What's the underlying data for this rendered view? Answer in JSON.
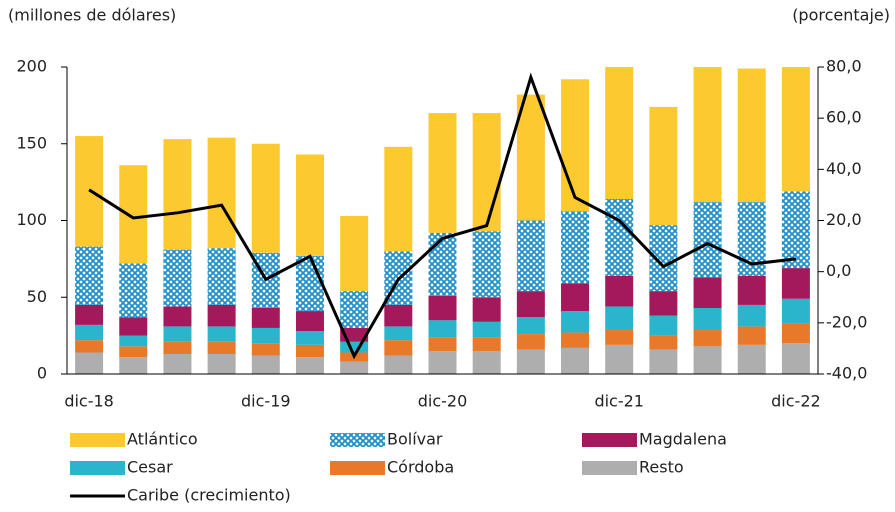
{
  "chart_data": {
    "type": "bar",
    "stacked": true,
    "y_label": "(millones de dólares)",
    "y2_label": "(porcentaje)",
    "categories": [
      "dic-18",
      null,
      null,
      null,
      "dic-19",
      null,
      null,
      null,
      "dic-20",
      null,
      null,
      null,
      "dic-21",
      null,
      null,
      null,
      "dic-22"
    ],
    "ylim": [
      0,
      200
    ],
    "yticks": [
      0,
      50,
      100,
      150,
      200
    ],
    "y2lim": [
      -40,
      80
    ],
    "y2ticks": [
      {
        "value": -40,
        "label": "-40,0"
      },
      {
        "value": -20,
        "label": "-20,0"
      },
      {
        "value": 0,
        "label": "0,0"
      },
      {
        "value": 20,
        "label": "20,0"
      },
      {
        "value": 40,
        "label": "40,0"
      },
      {
        "value": 60,
        "label": "60,0"
      },
      {
        "value": 80,
        "label": "80,0"
      }
    ],
    "series": [
      {
        "name": "Resto",
        "color": "#aeaeae",
        "values": [
          14,
          11,
          13,
          13,
          12,
          11,
          8,
          12,
          15,
          15,
          16,
          17,
          19,
          16,
          18,
          19,
          20
        ]
      },
      {
        "name": "Córdoba",
        "color": "#e8782a",
        "values": [
          8,
          7,
          8,
          8,
          8,
          8,
          6,
          10,
          9,
          9,
          10,
          10,
          10,
          9,
          11,
          12,
          13
        ]
      },
      {
        "name": "Cesar",
        "color": "#2bb5cc",
        "values": [
          10,
          7,
          10,
          10,
          10,
          9,
          7,
          9,
          11,
          10,
          11,
          14,
          15,
          13,
          14,
          14,
          16
        ]
      },
      {
        "name": "Magdalena",
        "color": "#a3195b",
        "values": [
          13,
          12,
          13,
          14,
          13,
          13,
          9,
          14,
          16,
          16,
          17,
          18,
          20,
          16,
          20,
          19,
          20
        ]
      },
      {
        "name": "Bolívar",
        "color": "#1f8fc9",
        "pattern": "crosshatch",
        "values": [
          38,
          35,
          37,
          37,
          36,
          36,
          24,
          35,
          41,
          43,
          46,
          47,
          50,
          43,
          49,
          48,
          50
        ]
      },
      {
        "name": "Atlántico",
        "color": "#fcc92f",
        "values": [
          72,
          64,
          72,
          72,
          71,
          66,
          49,
          68,
          78,
          77,
          82,
          86,
          86,
          77,
          88,
          87,
          81
        ]
      },
      {
        "name": "Caribe (crecimiento)",
        "color": "#000000",
        "type": "line",
        "axis": "y2",
        "values": [
          32,
          21,
          23,
          26,
          -3,
          6,
          -33,
          -3,
          13,
          18,
          76,
          29,
          20,
          2,
          11,
          3,
          5
        ]
      }
    ]
  }
}
